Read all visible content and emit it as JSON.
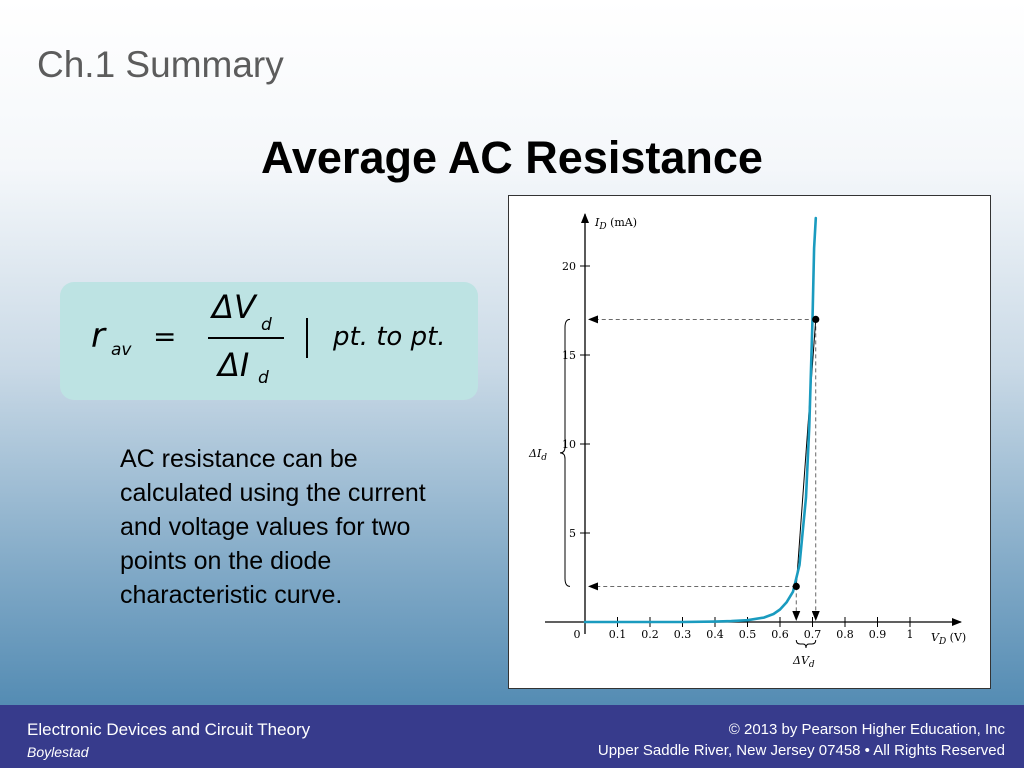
{
  "header": {
    "section": "Ch.1 Summary",
    "title": "Average AC Resistance"
  },
  "formula": {
    "lhs": "r",
    "lhs_sub": "av",
    "equals": "=",
    "numerator": "ΔV",
    "numerator_sub": "d",
    "denominator": "ΔI",
    "denominator_sub": "d",
    "qualifier": "pt. to pt."
  },
  "body": {
    "text": "AC resistance can be calculated using the current and voltage values for two points on the diode characteristic curve."
  },
  "chart_data": {
    "type": "line",
    "x_axis_label": "V_D (V)",
    "y_axis_label": "I_D (mA)",
    "xlim": [
      0,
      1
    ],
    "ylim": [
      0,
      20
    ],
    "x_ticks": [
      "0",
      "0.1",
      "0.2",
      "0.3",
      "0.4",
      "0.5",
      "0.6",
      "0.7",
      "0.8",
      "0.9",
      "1"
    ],
    "y_ticks": [
      "5",
      "10",
      "15",
      "20"
    ],
    "series": [
      {
        "x": [
          0,
          0.1,
          0.2,
          0.3,
          0.4,
          0.45,
          0.5,
          0.55,
          0.58,
          0.6,
          0.62,
          0.64,
          0.66,
          0.68,
          0.69,
          0.7,
          0.705,
          0.71
        ],
        "y": [
          0,
          0,
          0,
          0,
          0.02,
          0.05,
          0.1,
          0.25,
          0.45,
          0.7,
          1.1,
          1.7,
          3.2,
          7.0,
          11.0,
          17.0,
          21.0,
          24.0
        ]
      }
    ],
    "points": [
      {
        "x": 0.65,
        "y": 2
      },
      {
        "x": 0.71,
        "y": 17
      }
    ],
    "annotations": {
      "delta_i": "ΔI_d",
      "delta_v": "ΔV_d"
    },
    "grid": false
  },
  "footer": {
    "left_title": "Electronic Devices and Circuit Theory",
    "left_author": "Boylestad",
    "right_line1": "© 2013 by Pearson Higher Education, Inc",
    "right_line2": "Upper Saddle River, New Jersey 07458 • All Rights Reserved"
  },
  "colors": {
    "curve": "#1a9bbf",
    "footer_bg": "#373b8c",
    "formula_bg": "#bde3e3"
  }
}
